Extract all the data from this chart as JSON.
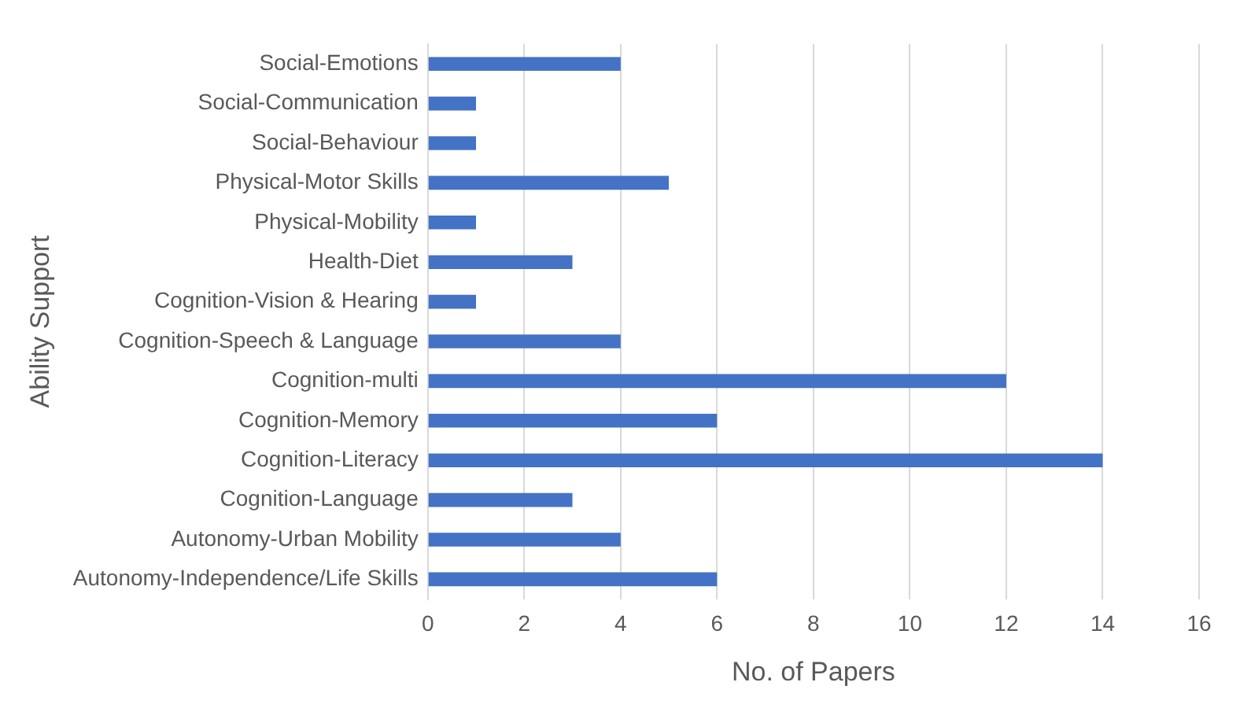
{
  "chart_data": {
    "type": "bar",
    "orientation": "horizontal",
    "xlabel": "No. of Papers",
    "ylabel": "Ability Support",
    "categories": [
      "Social-Emotions",
      "Social-Communication",
      "Social-Behaviour",
      "Physical-Motor Skills",
      "Physical-Mobility",
      "Health-Diet",
      "Cognition-Vision & Hearing",
      "Cognition-Speech & Language",
      "Cognition-multi",
      "Cognition-Memory",
      "Cognition-Literacy",
      "Cognition-Language",
      "Autonomy-Urban Mobility",
      "Autonomy-Independence/Life Skills"
    ],
    "values": [
      4,
      1,
      1,
      5,
      1,
      3,
      1,
      4,
      12,
      6,
      14,
      3,
      4,
      6
    ],
    "color": "#4472c4",
    "xlim": [
      0,
      16
    ],
    "xticks": [
      0,
      2,
      4,
      6,
      8,
      10,
      12,
      14,
      16
    ],
    "grid": "x"
  }
}
